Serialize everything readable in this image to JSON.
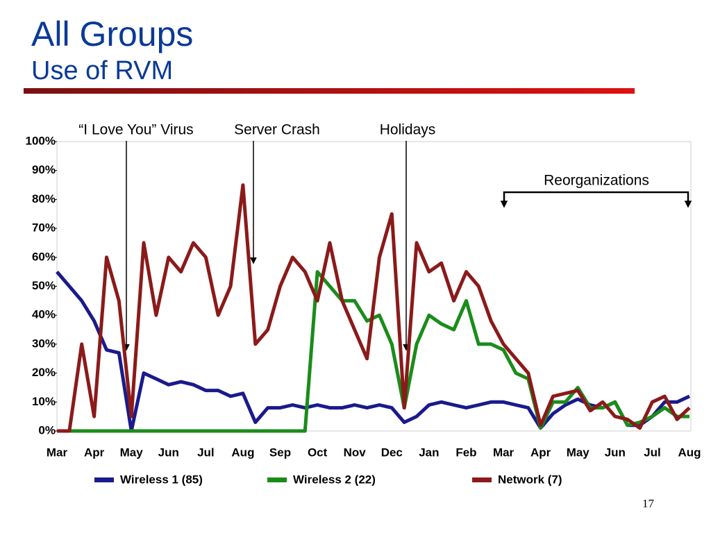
{
  "chart_data": {
    "type": "line",
    "title": "All Groups",
    "subtitle": "Use of RVM",
    "annotations": [
      "“I Love You” Virus",
      "Server Crash",
      "Holidays",
      "Reorganizations"
    ],
    "page_number": "17",
    "categories": [
      "Mar",
      null,
      null,
      "Apr",
      null,
      null,
      "May",
      null,
      null,
      "Jun",
      null,
      null,
      "Jul",
      null,
      null,
      "Aug",
      null,
      null,
      "Sep",
      null,
      null,
      "Oct",
      null,
      null,
      "Nov",
      null,
      null,
      "Dec",
      null,
      null,
      "Jan",
      null,
      null,
      "Feb",
      null,
      null,
      "Mar",
      null,
      null,
      "Apr",
      null,
      null,
      "May",
      null,
      null,
      "Jun",
      null,
      null,
      "Jul",
      null,
      null,
      "Aug"
    ],
    "series": [
      {
        "name": "Wireless 1 (85)",
        "color": "#1a1a8c",
        "values": [
          55,
          50,
          45,
          38,
          28,
          27,
          0,
          20,
          18,
          16,
          17,
          16,
          14,
          14,
          12,
          13,
          3,
          8,
          8,
          9,
          8,
          9,
          8,
          8,
          9,
          8,
          9,
          8,
          3,
          5,
          9,
          10,
          9,
          8,
          9,
          10,
          10,
          9,
          8,
          1,
          6,
          9,
          11,
          9,
          8,
          10,
          2,
          2,
          5,
          10,
          10,
          12
        ]
      },
      {
        "name": "Wireless 2 (22)",
        "color": "#1a8c1a",
        "values": [
          0,
          0,
          0,
          0,
          0,
          0,
          0,
          0,
          0,
          0,
          0,
          0,
          0,
          0,
          0,
          0,
          0,
          0,
          0,
          0,
          0,
          55,
          50,
          45,
          45,
          38,
          40,
          30,
          8,
          30,
          40,
          37,
          35,
          45,
          30,
          30,
          28,
          20,
          18,
          1,
          10,
          10,
          15,
          8,
          8,
          10,
          2,
          3,
          5,
          8,
          5,
          5
        ]
      },
      {
        "name": "Network (7)",
        "color": "#8b1a1a",
        "values": [
          0,
          0,
          30,
          5,
          60,
          45,
          5,
          65,
          40,
          60,
          55,
          65,
          60,
          40,
          50,
          85,
          30,
          35,
          50,
          60,
          55,
          45,
          65,
          45,
          35,
          25,
          60,
          75,
          8,
          65,
          55,
          58,
          45,
          55,
          50,
          38,
          30,
          25,
          20,
          2,
          12,
          13,
          14,
          7,
          10,
          5,
          4,
          1,
          10,
          12,
          4,
          8
        ]
      }
    ],
    "ylim": [
      0,
      100
    ],
    "yticks": [
      {
        "value": 0,
        "label": "0%"
      },
      {
        "value": 10,
        "label": "10%"
      },
      {
        "value": 20,
        "label": "20%"
      },
      {
        "value": 30,
        "label": "30%"
      },
      {
        "value": 40,
        "label": "40%"
      },
      {
        "value": 50,
        "label": "50%"
      },
      {
        "value": 60,
        "label": "60%"
      },
      {
        "value": 70,
        "label": "70%"
      },
      {
        "value": 80,
        "label": "80%"
      },
      {
        "value": 90,
        "label": "90%"
      },
      {
        "value": 100,
        "label": "100%"
      }
    ],
    "grid": false
  }
}
